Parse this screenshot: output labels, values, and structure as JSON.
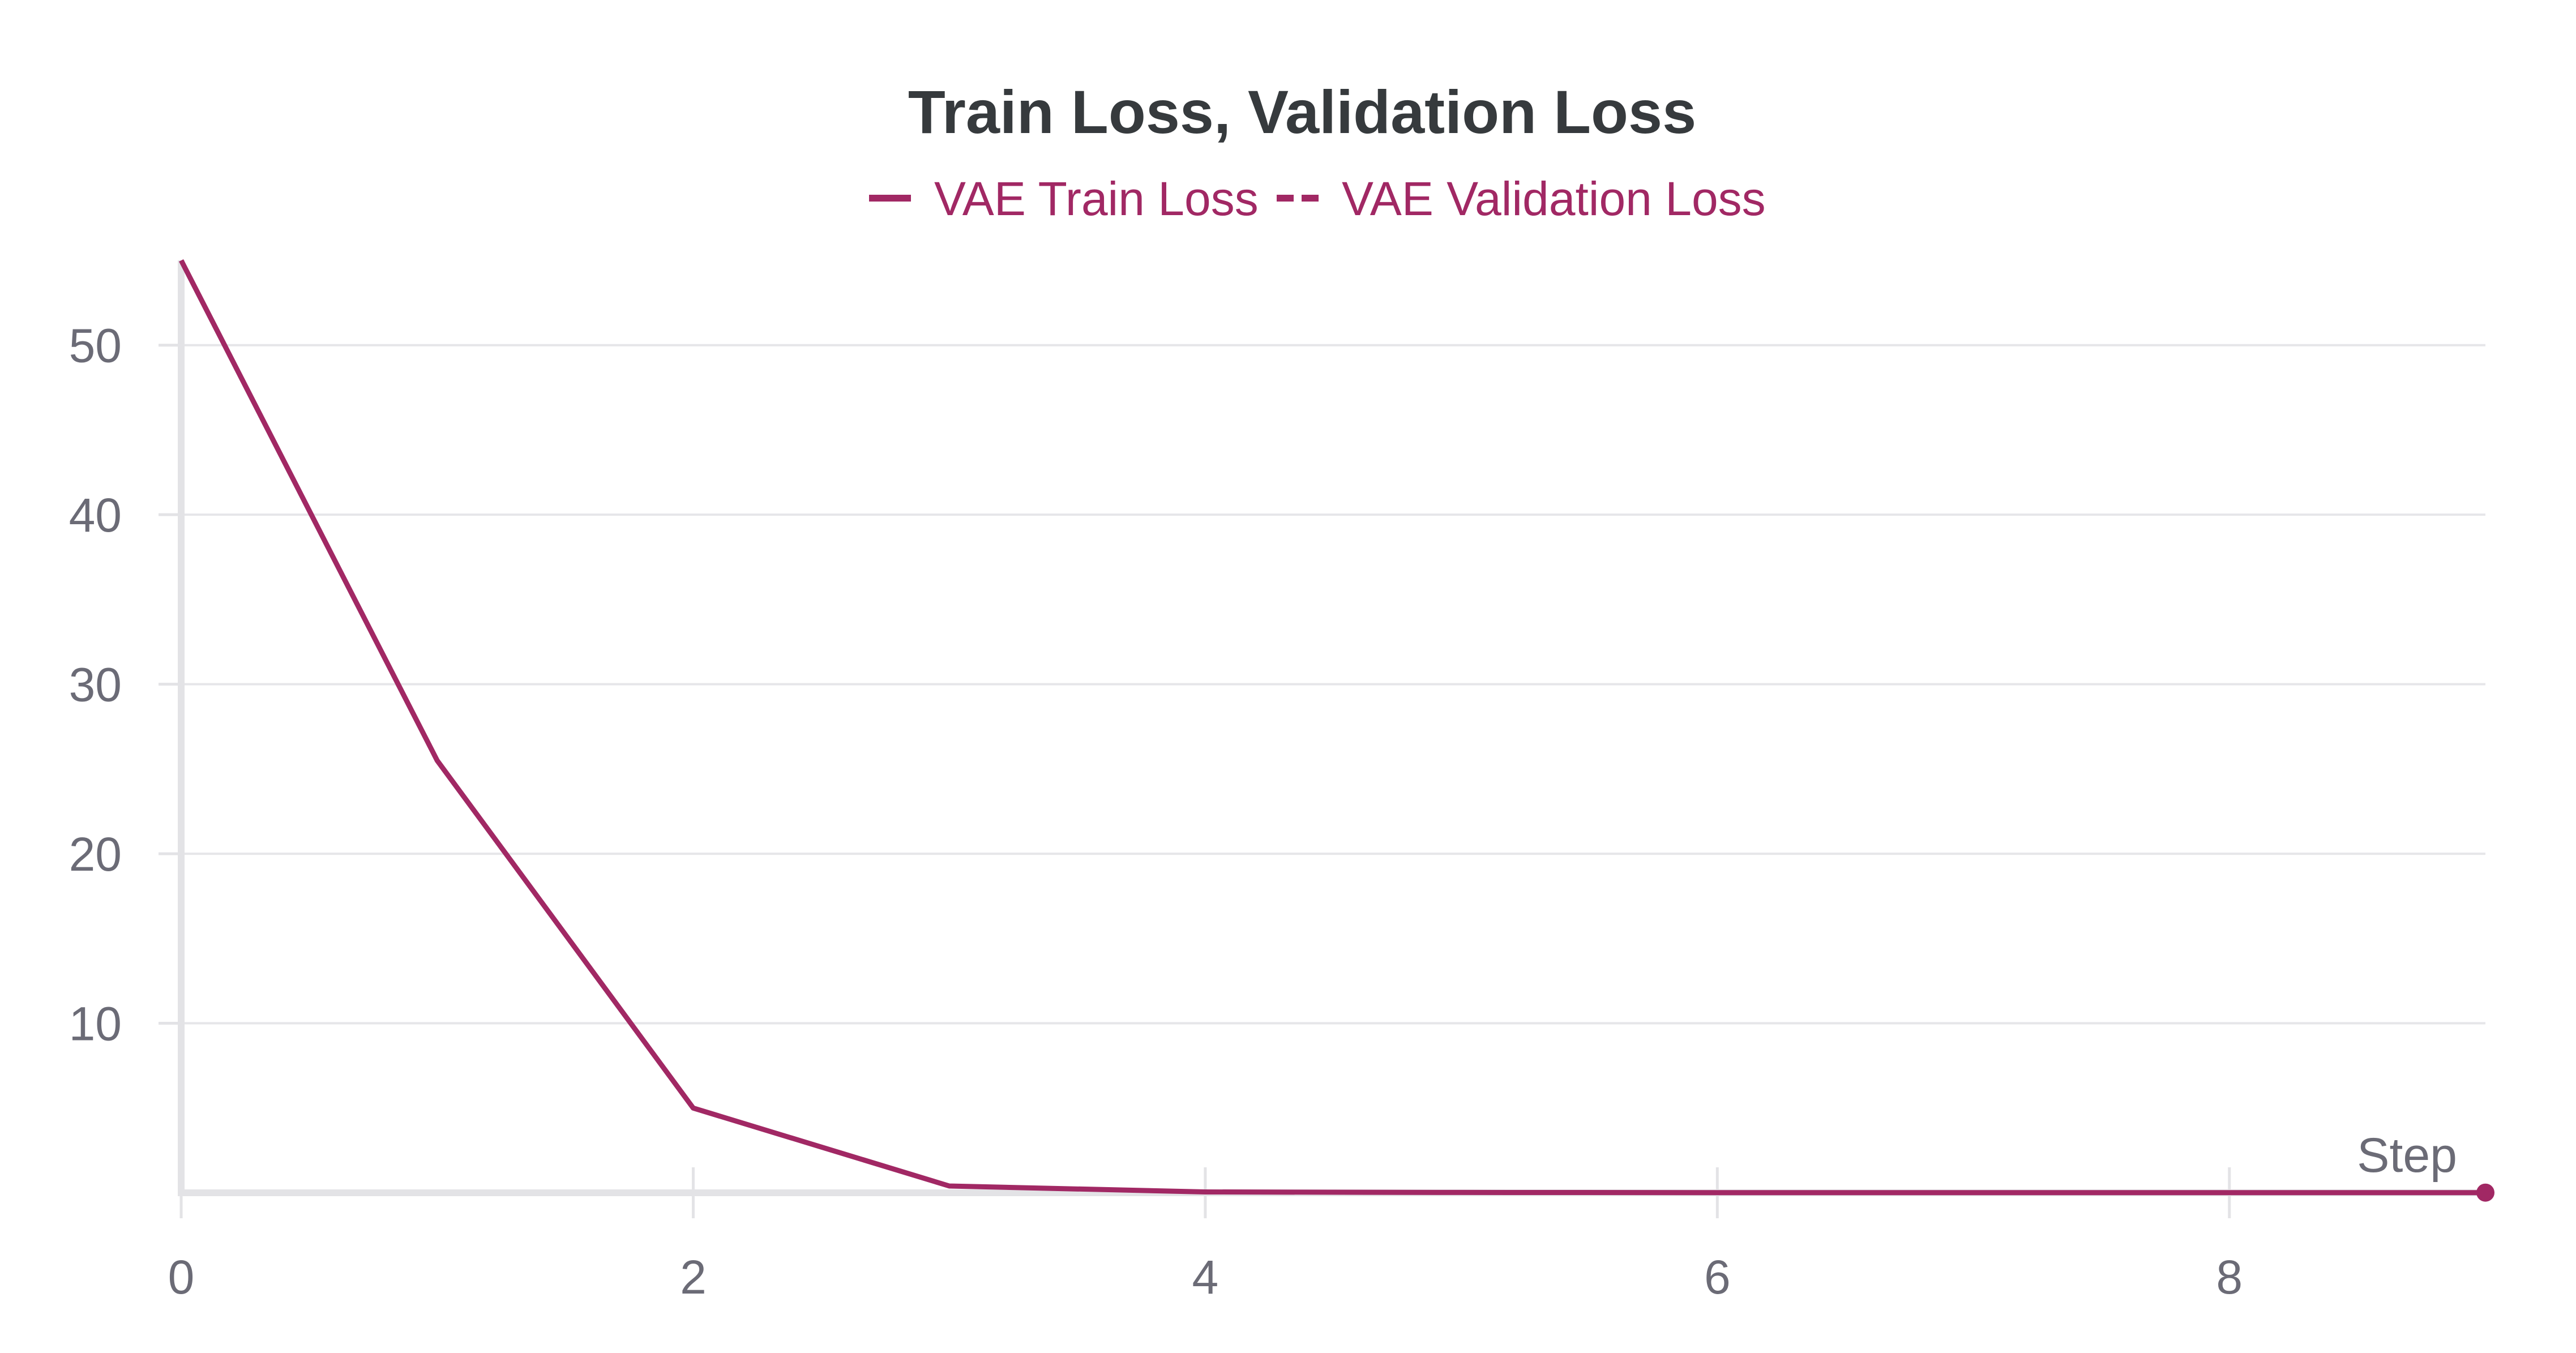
{
  "chart_data": {
    "type": "line",
    "title": "Train Loss, Validation Loss",
    "xlabel": "Step",
    "ylabel": "",
    "xlim": [
      0,
      9
    ],
    "ylim": [
      0,
      55
    ],
    "x_ticks": [
      0,
      2,
      4,
      6,
      8
    ],
    "y_ticks": [
      10,
      20,
      30,
      40,
      50
    ],
    "grid": true,
    "legend_position": "top-center",
    "series": [
      {
        "name": "VAE Train Loss",
        "style": "solid",
        "color": "#a12864",
        "x": [
          0,
          1,
          2,
          3,
          4,
          5,
          6,
          7,
          8,
          9
        ],
        "values": [
          55,
          25.5,
          5,
          0.4,
          0.05,
          0.02,
          0.01,
          0.01,
          0.01,
          0.01
        ]
      },
      {
        "name": "VAE Validation Loss",
        "style": "dashed",
        "color": "#a12864",
        "x": [
          9
        ],
        "values": [
          0.01
        ]
      }
    ]
  }
}
